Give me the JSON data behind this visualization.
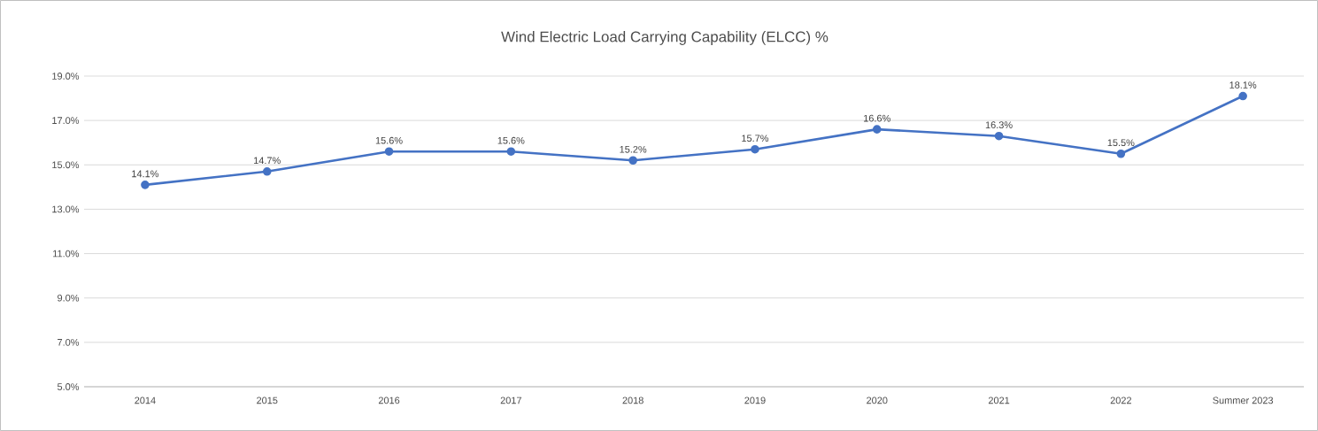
{
  "chart_data": {
    "type": "line",
    "title": "Wind Electric Load Carrying Capability (ELCC) %",
    "categories": [
      "2014",
      "2015",
      "2016",
      "2017",
      "2018",
      "2019",
      "2020",
      "2021",
      "2022",
      "Summer 2023"
    ],
    "values": [
      14.1,
      14.7,
      15.6,
      15.6,
      15.2,
      15.7,
      16.6,
      16.3,
      15.5,
      18.1
    ],
    "value_labels": [
      "14.1%",
      "14.7%",
      "15.6%",
      "15.6%",
      "15.2%",
      "15.7%",
      "16.6%",
      "16.3%",
      "15.5%",
      "18.1%"
    ],
    "color": "#4472c4",
    "marker": "circle",
    "line_style": "solid",
    "grid": "y",
    "ylim": [
      5,
      19
    ],
    "yticks": [
      {
        "value": 5,
        "label": "5.0%"
      },
      {
        "value": 7,
        "label": "7.0%"
      },
      {
        "value": 9,
        "label": "9.0%"
      },
      {
        "value": 11,
        "label": "11.0%"
      },
      {
        "value": 13,
        "label": "13.0%"
      },
      {
        "value": 15,
        "label": "15.0%"
      },
      {
        "value": 17,
        "label": "17.0%"
      },
      {
        "value": 19,
        "label": "19.0%"
      }
    ]
  }
}
